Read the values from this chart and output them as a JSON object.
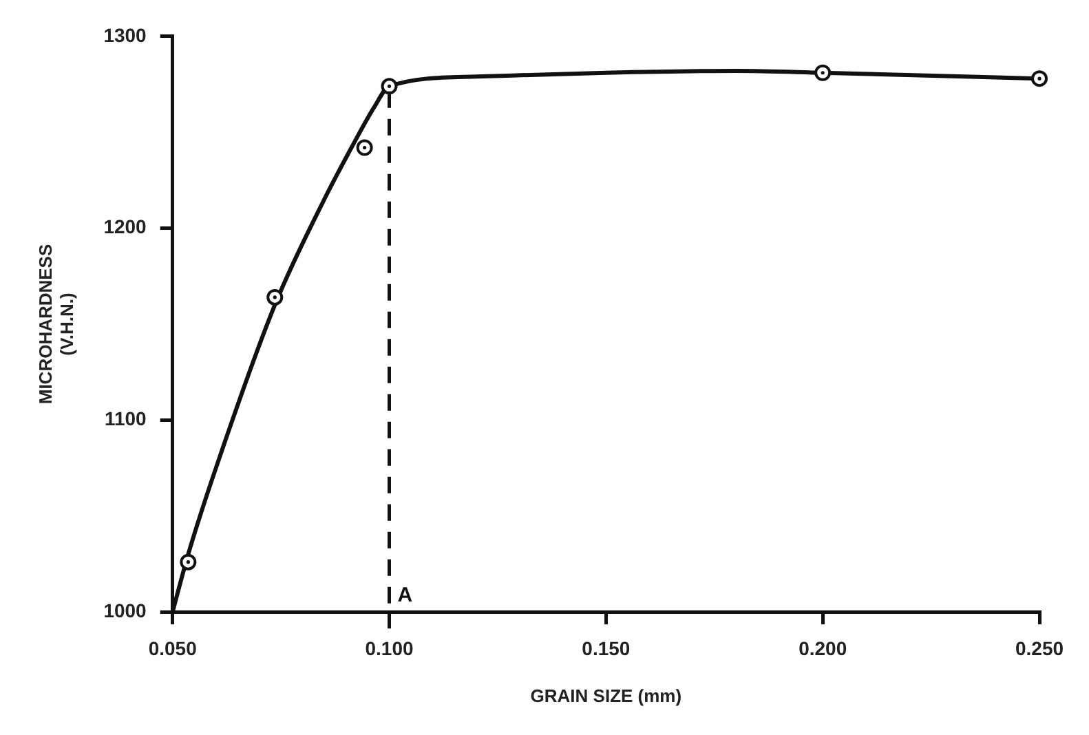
{
  "chart_data": {
    "type": "line",
    "xlabel": "GRAIN SIZE (mm)",
    "ylabel": "MICROHARDNESS\n(V.H.N.)",
    "xlim": [
      0.05,
      0.25
    ],
    "xticks": [
      {
        "value": 0.05,
        "label": "0.050"
      },
      {
        "value": 0.1,
        "label": "0.100"
      },
      {
        "value": 0.15,
        "label": "0.150"
      },
      {
        "value": 0.2,
        "label": "0.200"
      },
      {
        "value": 0.25,
        "label": "0.250"
      }
    ],
    "ylim": [
      1000,
      1300
    ],
    "yticks": [
      1000,
      1100,
      1200,
      1300
    ],
    "legend": false,
    "series": [
      {
        "type": "line",
        "color": "#111111",
        "marker": "none",
        "line_style": "solid",
        "x": [
          0.05,
          0.0536,
          0.06,
          0.0736,
          0.085,
          0.092,
          0.0965,
          0.1,
          0.12,
          0.15,
          0.18,
          0.2,
          0.25
        ],
        "values": [
          1000,
          1030,
          1075,
          1160,
          1215,
          1245,
          1263,
          1274,
          1279,
          1281,
          1282,
          1281,
          1278
        ]
      },
      {
        "type": "scatter",
        "color": "#111111",
        "marker": "circle",
        "x": [
          0.0536,
          0.0736,
          0.0943,
          0.1,
          0.2,
          0.25
        ],
        "values": [
          1026,
          1164,
          1242,
          1274,
          1281,
          1278
        ]
      }
    ],
    "ref_lines": [
      {
        "axis": "x",
        "value": 0.1,
        "label": "A",
        "line_style": "dashed",
        "color": "#111111"
      }
    ]
  }
}
